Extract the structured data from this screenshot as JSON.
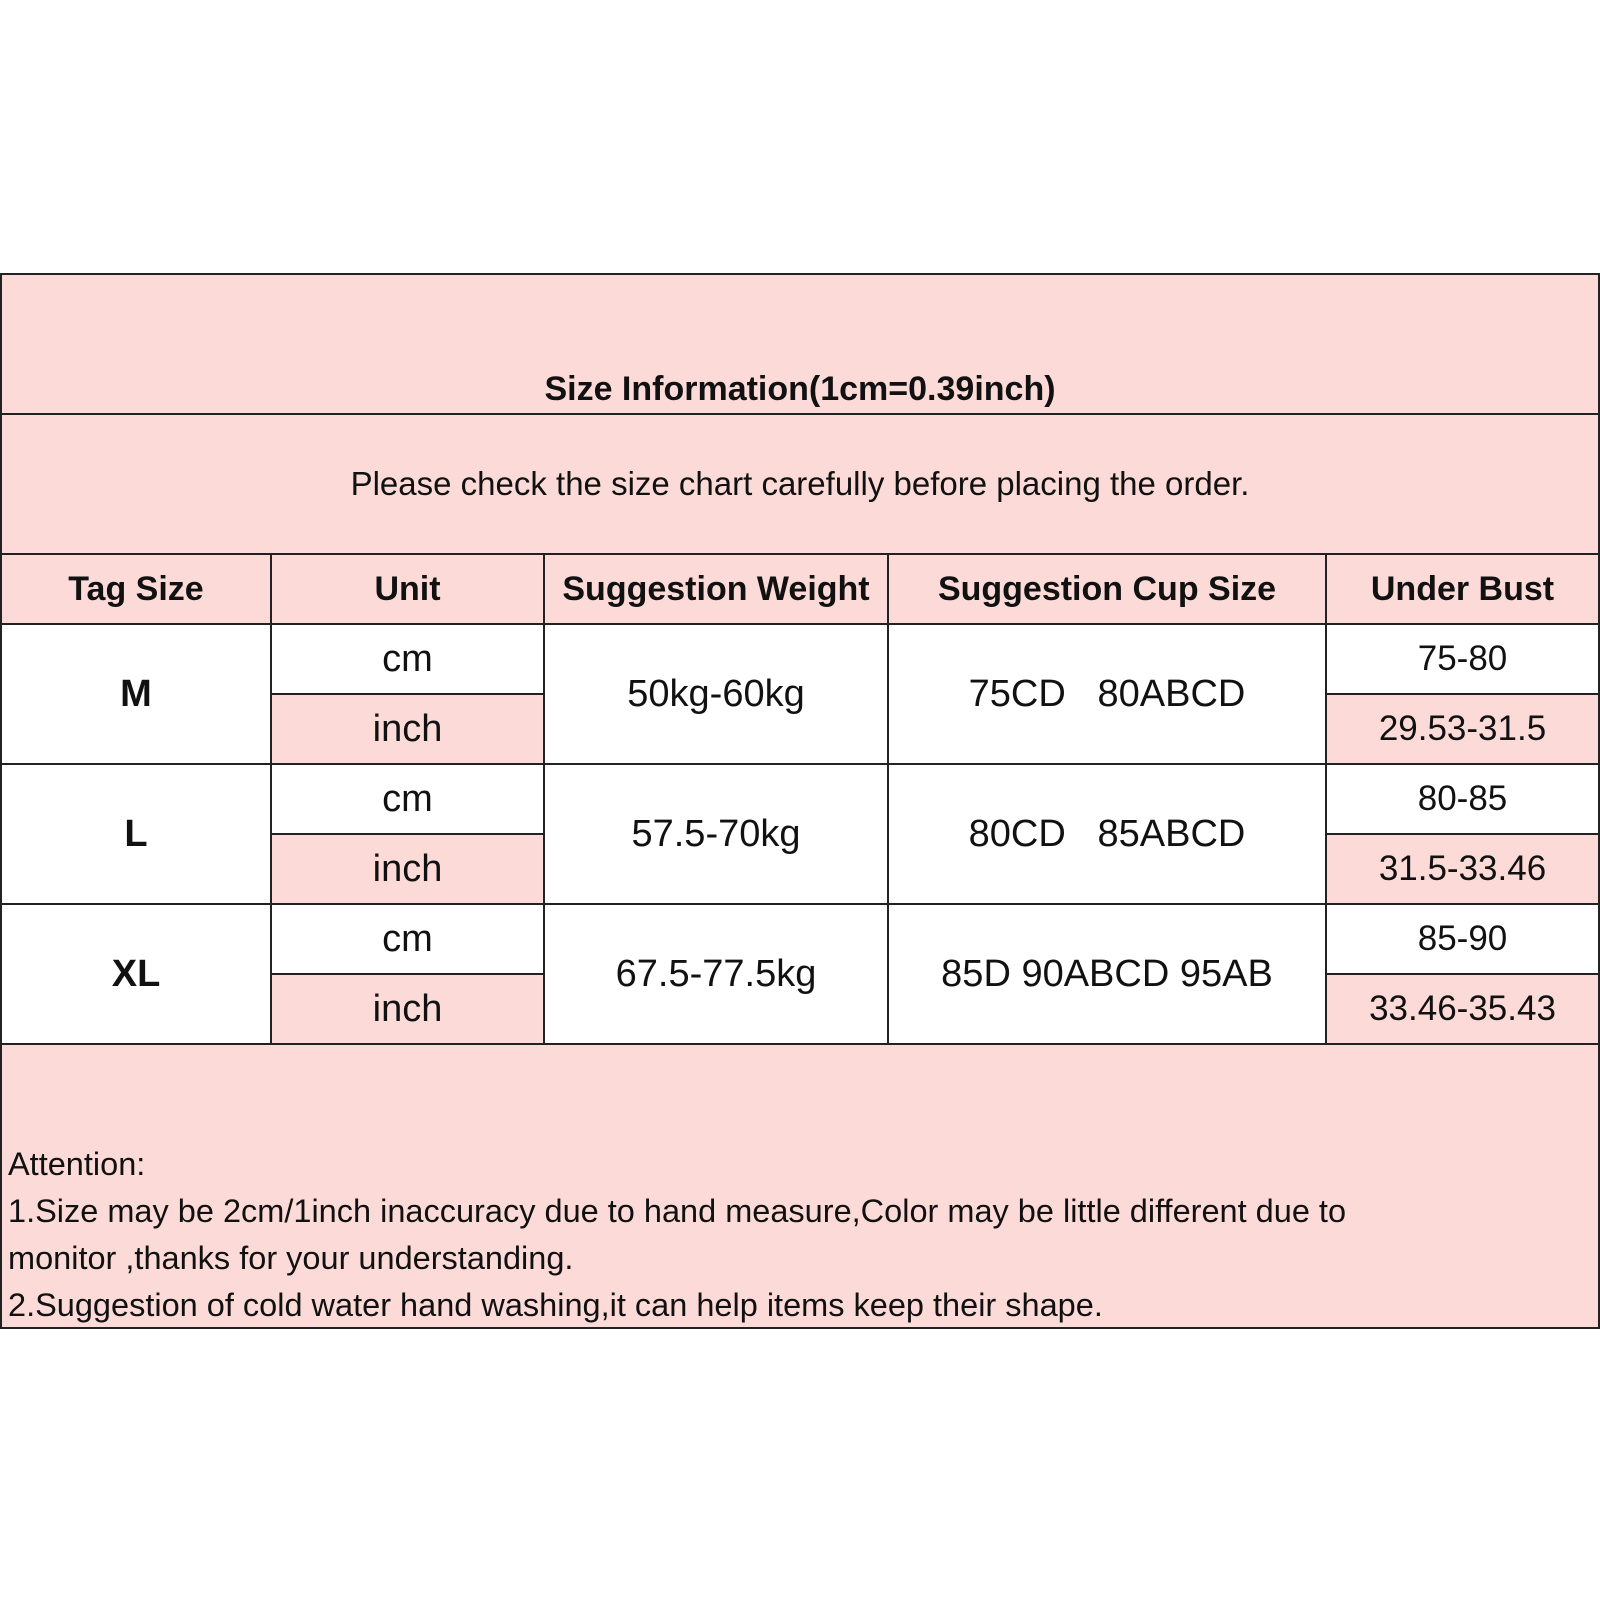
{
  "title": "Size Information(1cm=0.39inch)",
  "subtitle": "Please check the size chart carefully before placing the order.",
  "headers": [
    "Tag Size",
    "Unit",
    "Suggestion Weight",
    "Suggestion Cup Size",
    "Under Bust"
  ],
  "rows": [
    {
      "size": "M",
      "unit_cm": "cm",
      "unit_inch": "inch",
      "weight": "50kg-60kg",
      "cup": "75CD   80ABCD",
      "bust_cm": "75-80",
      "bust_inch": "29.53-31.5"
    },
    {
      "size": "L",
      "unit_cm": "cm",
      "unit_inch": "inch",
      "weight": "57.5-70kg",
      "cup": "80CD   85ABCD",
      "bust_cm": "80-85",
      "bust_inch": "31.5-33.46"
    },
    {
      "size": "XL",
      "unit_cm": "cm",
      "unit_inch": "inch",
      "weight": "67.5-77.5kg",
      "cup": "85D 90ABCD 95AB",
      "bust_cm": "85-90",
      "bust_inch": "33.46-35.43"
    }
  ],
  "attention": {
    "heading": "Attention:",
    "line1a": "1.Size may be 2cm/1inch inaccuracy due to hand measure,Color may be little different due to",
    "line1b": "monitor ,thanks for your understanding.",
    "line2": "2.Suggestion of cold water hand washing,it can help items keep their shape."
  },
  "colors": {
    "pink": "#fbdad8",
    "border": "#222222"
  }
}
